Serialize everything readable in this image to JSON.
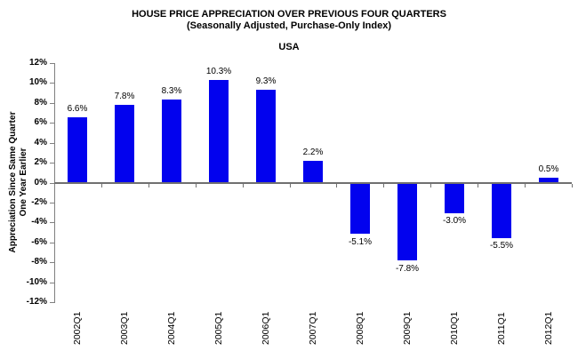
{
  "chart_data": {
    "type": "bar",
    "title": "HOUSE PRICE APPRECIATION OVER PREVIOUS FOUR QUARTERS",
    "subtitle": "(Seasonally Adjusted, Purchase-Only Index)",
    "region": "USA",
    "ylabel_line1": "Appreciation Since Same Quarter",
    "ylabel_line2": "One Year Earlier",
    "categories": [
      "2002Q1",
      "2003Q1",
      "2004Q1",
      "2005Q1",
      "2006Q1",
      "2007Q1",
      "2008Q1",
      "2009Q1",
      "2010Q1",
      "2011Q1",
      "2012Q1"
    ],
    "values": [
      6.6,
      7.8,
      8.3,
      10.3,
      9.3,
      2.2,
      -5.1,
      -7.8,
      -3.0,
      -5.5,
      0.5
    ],
    "value_labels": [
      "6.6%",
      "7.8%",
      "8.3%",
      "10.3%",
      "9.3%",
      "2.2%",
      "-5.1%",
      "-7.8%",
      "-3.0%",
      "-5.5%",
      "0.5%"
    ],
    "ylim": [
      -12,
      12
    ],
    "ytick_step": 2,
    "ytick_labels": [
      "12%",
      "10%",
      "8%",
      "6%",
      "4%",
      "2%",
      "0%",
      "-2%",
      "-4%",
      "-6%",
      "-8%",
      "-10%",
      "-12%"
    ],
    "grid": false,
    "legend": "none",
    "colors": {
      "bar": "#0202EE",
      "axis": "#808080",
      "zero_line": "#707070",
      "text": "#000000"
    }
  }
}
